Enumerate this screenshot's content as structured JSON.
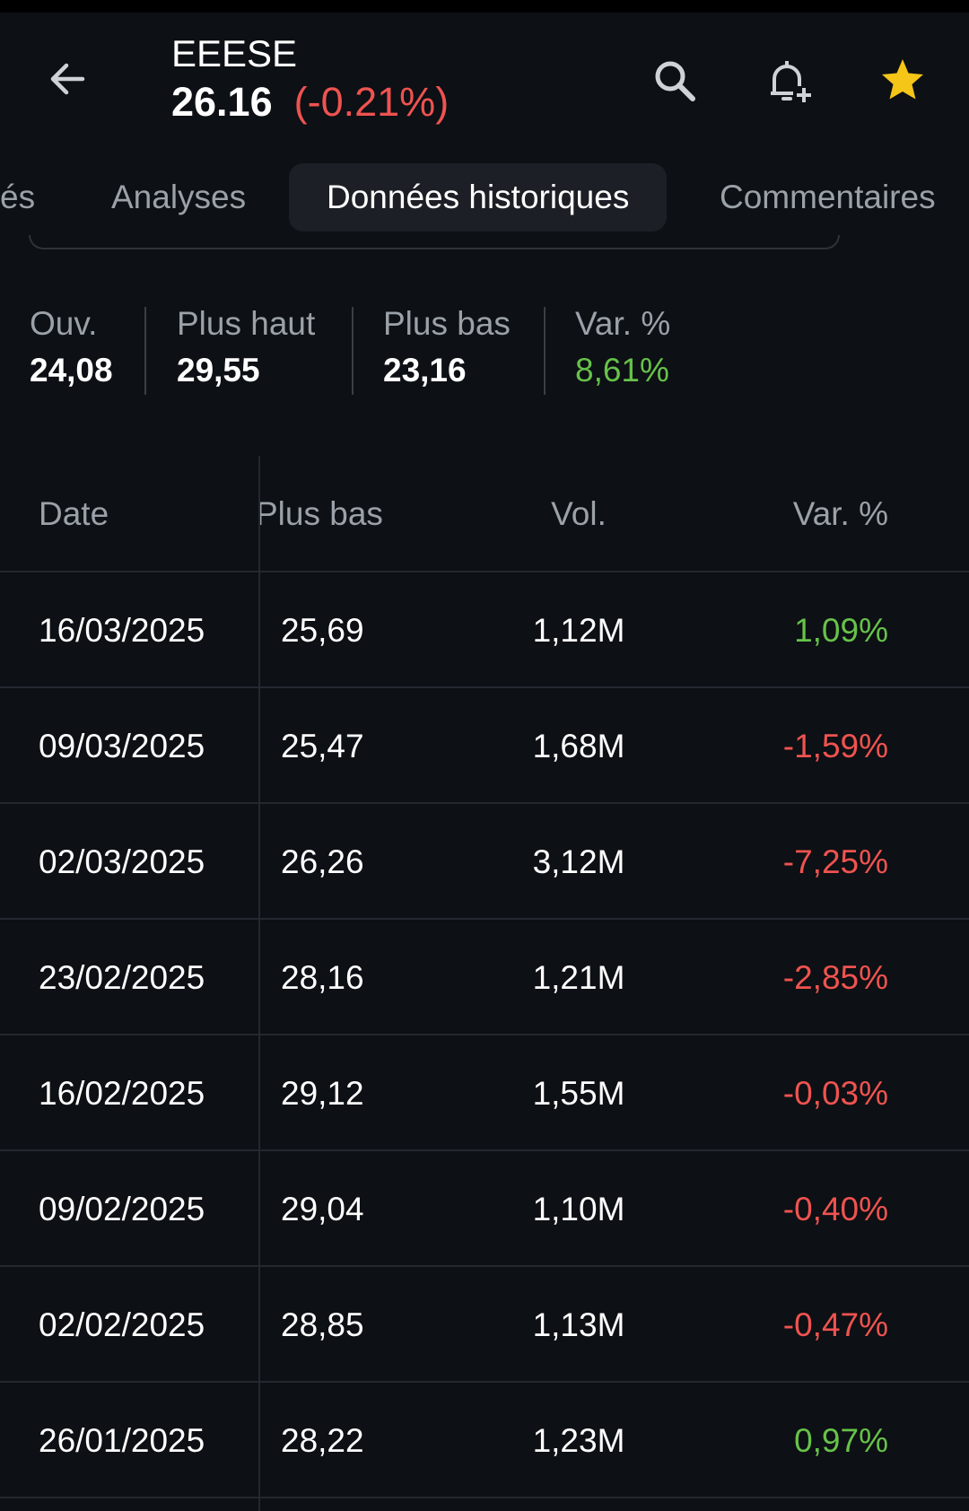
{
  "header": {
    "symbol": "EEESE",
    "price": "26.16",
    "change": "(-0.21%)",
    "icons": [
      "back-arrow-icon",
      "search-icon",
      "bell-plus-icon",
      "star-icon"
    ],
    "star_color": "#f5c518"
  },
  "tabs": [
    {
      "label": "és"
    },
    {
      "label": "Analyses"
    },
    {
      "label": "Données historiques",
      "active": true
    },
    {
      "label": "Commentaires"
    }
  ],
  "stats": {
    "open": {
      "label": "Ouv.",
      "value": "24,08"
    },
    "high": {
      "label": "Plus haut",
      "value": "29,55"
    },
    "low": {
      "label": "Plus bas",
      "value": "23,16"
    },
    "change": {
      "label": "Var. %",
      "value": "8,61%"
    }
  },
  "table": {
    "headers": {
      "date": "Date",
      "low": "Plus bas",
      "vol": "Vol.",
      "change": "Var. %"
    },
    "rows": [
      {
        "date": "16/03/2025",
        "low": "25,69",
        "vol": "1,12M",
        "change": "1,09%",
        "dir": "pos"
      },
      {
        "date": "09/03/2025",
        "low": "25,47",
        "vol": "1,68M",
        "change": "-1,59%",
        "dir": "neg"
      },
      {
        "date": "02/03/2025",
        "low": "26,26",
        "vol": "3,12M",
        "change": "-7,25%",
        "dir": "neg"
      },
      {
        "date": "23/02/2025",
        "low": "28,16",
        "vol": "1,21M",
        "change": "-2,85%",
        "dir": "neg"
      },
      {
        "date": "16/02/2025",
        "low": "29,12",
        "vol": "1,55M",
        "change": "-0,03%",
        "dir": "neg"
      },
      {
        "date": "09/02/2025",
        "low": "29,04",
        "vol": "1,10M",
        "change": "-0,40%",
        "dir": "neg"
      },
      {
        "date": "02/02/2025",
        "low": "28,85",
        "vol": "1,13M",
        "change": "-0,47%",
        "dir": "neg"
      },
      {
        "date": "26/01/2025",
        "low": "28,22",
        "vol": "1,23M",
        "change": "0,97%",
        "dir": "pos"
      }
    ]
  },
  "colors": {
    "positive": "#66c24a",
    "negative": "#ef5350",
    "background": "#0d1014"
  }
}
